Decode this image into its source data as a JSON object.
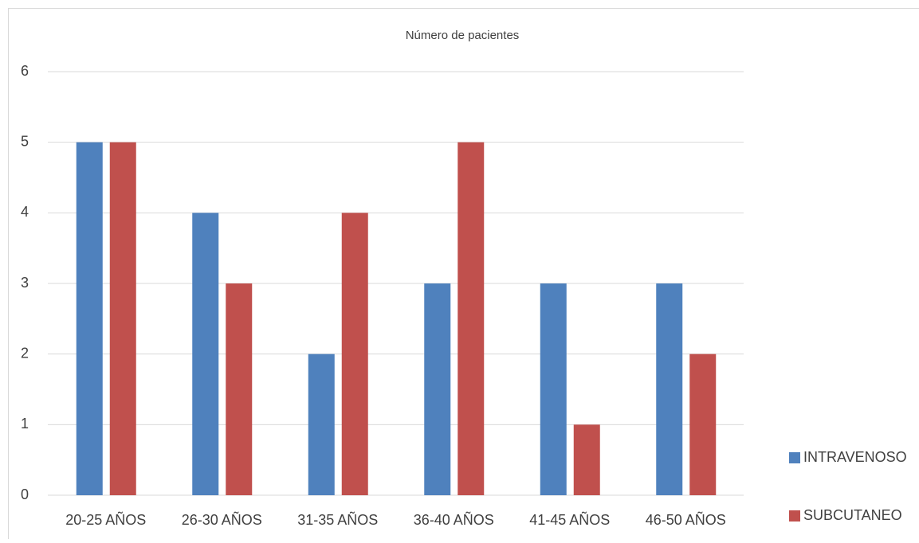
{
  "chart_data": {
    "type": "bar",
    "title": "Número de pacientes",
    "categories": [
      "20-25 AÑOS",
      "26-30 AÑOS",
      "31-35 AÑOS",
      "36-40 AÑOS",
      "41-45 AÑOS",
      "46-50 AÑOS"
    ],
    "series": [
      {
        "name": "INTRAVENOSO",
        "color": "#4f81bd",
        "values": [
          5,
          4,
          2,
          3,
          3,
          3
        ]
      },
      {
        "name": "SUBCUTANEO",
        "color": "#c0504d",
        "values": [
          5,
          3,
          4,
          5,
          1,
          2
        ]
      }
    ],
    "ylim": [
      0,
      6
    ],
    "yticks": [
      0,
      1,
      2,
      3,
      4,
      5,
      6
    ],
    "grid": true,
    "legend": "right"
  }
}
